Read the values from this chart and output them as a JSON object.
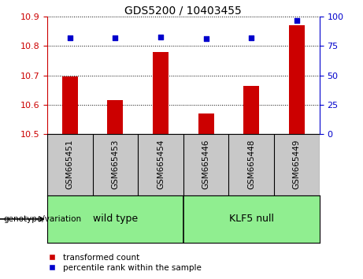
{
  "title": "GDS5200 / 10403455",
  "categories": [
    "GSM665451",
    "GSM665453",
    "GSM665454",
    "GSM665446",
    "GSM665448",
    "GSM665449"
  ],
  "bar_values": [
    10.695,
    10.615,
    10.78,
    10.57,
    10.665,
    10.87
  ],
  "percentile_values": [
    82,
    82,
    83,
    81,
    82,
    97
  ],
  "ylim_left": [
    10.5,
    10.9
  ],
  "ylim_right": [
    0,
    100
  ],
  "yticks_left": [
    10.5,
    10.6,
    10.7,
    10.8,
    10.9
  ],
  "yticks_right": [
    0,
    25,
    50,
    75,
    100
  ],
  "bar_color": "#cc0000",
  "point_color": "#0000cc",
  "grid_color": "#000000",
  "label_area_color": "#c8c8c8",
  "green_color": "#90ee90",
  "wildtype_label": "wild type",
  "klf5_label": "KLF5 null",
  "genotype_label": "genotype/variation",
  "legend_bar_label": "transformed count",
  "legend_point_label": "percentile rank within the sample",
  "ylabel_left_color": "#cc0000",
  "ylabel_right_color": "#0000cc",
  "title_fontsize": 10,
  "tick_fontsize": 8,
  "label_fontsize": 7.5,
  "legend_fontsize": 7.5
}
